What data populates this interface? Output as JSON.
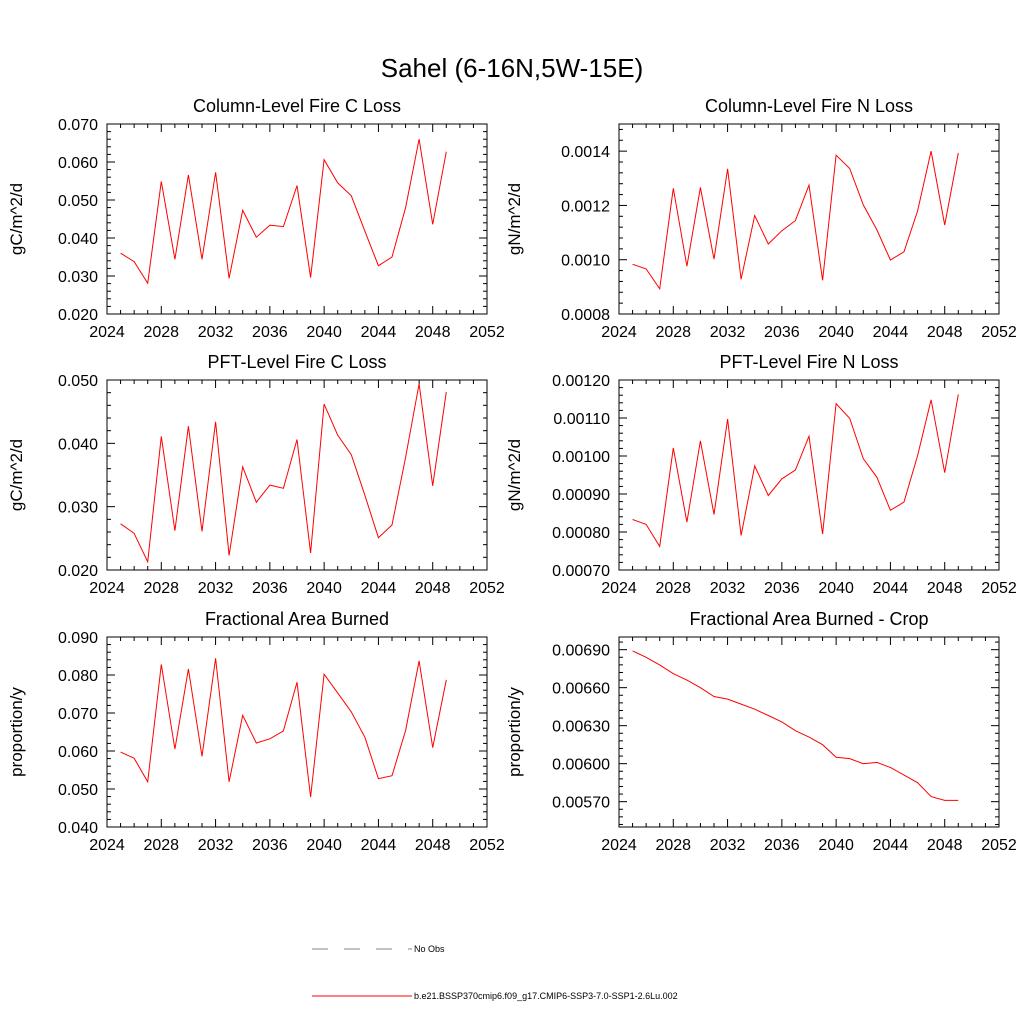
{
  "figure": {
    "title": "Sahel (6-16N,5W-15E)"
  },
  "colors": {
    "series": "#ff0000",
    "no_obs": "#8080a0",
    "axis": "#000000"
  },
  "chart_data": [
    {
      "type": "line",
      "title": "Column-Level Fire C Loss",
      "xlabel": "",
      "ylabel": "gC/m^2/d",
      "xlim": [
        2024,
        2052
      ],
      "ylim": [
        0.02,
        0.07
      ],
      "xticks": [
        "2024",
        "2028",
        "2032",
        "2036",
        "2040",
        "2044",
        "2048",
        "2052"
      ],
      "yticks": [
        "0.020",
        "0.030",
        "0.040",
        "0.050",
        "0.060",
        "0.070"
      ],
      "x": [
        2025,
        2026,
        2027,
        2028,
        2029,
        2030,
        2031,
        2032,
        2033,
        2034,
        2035,
        2036,
        2037,
        2038,
        2039,
        2040,
        2041,
        2042,
        2043,
        2044,
        2045,
        2046,
        2047,
        2048,
        2049
      ],
      "series": [
        {
          "values": [
            0.036,
            0.0338,
            0.0281,
            0.0549,
            0.0344,
            0.0566,
            0.0344,
            0.0573,
            0.0294,
            0.0473,
            0.0402,
            0.0434,
            0.043,
            0.0538,
            0.0296,
            0.0606,
            0.0545,
            0.0511,
            0.0418,
            0.0327,
            0.035,
            0.048,
            0.066,
            0.0436,
            0.0627
          ]
        }
      ],
      "grid": false,
      "legend": "none"
    },
    {
      "type": "line",
      "title": "Column-Level Fire N Loss",
      "xlabel": "",
      "ylabel": "gN/m^2/d",
      "xlim": [
        2024,
        2052
      ],
      "ylim": [
        0.0008,
        0.0015
      ],
      "xticks": [
        "2024",
        "2028",
        "2032",
        "2036",
        "2040",
        "2044",
        "2048",
        "2052"
      ],
      "yticks": [
        "0.0008",
        "0.0010",
        "0.0012",
        "0.0014"
      ],
      "x": [
        2025,
        2026,
        2027,
        2028,
        2029,
        2030,
        2031,
        2032,
        2033,
        2034,
        2035,
        2036,
        2037,
        2038,
        2039,
        2040,
        2041,
        2042,
        2043,
        2044,
        2045,
        2046,
        2047,
        2048,
        2049
      ],
      "series": [
        {
          "values": [
            0.000983,
            0.000966,
            0.000893,
            0.001263,
            0.000976,
            0.001266,
            0.001002,
            0.001335,
            0.000928,
            0.001163,
            0.001058,
            0.001107,
            0.001144,
            0.001275,
            0.000924,
            0.001385,
            0.001336,
            0.001202,
            0.00111,
            0.000999,
            0.001029,
            0.00118,
            0.0014,
            0.001128,
            0.001393
          ]
        }
      ],
      "grid": false,
      "legend": "none"
    },
    {
      "type": "line",
      "title": "PFT-Level Fire C Loss",
      "xlabel": "",
      "ylabel": "gC/m^2/d",
      "xlim": [
        2024,
        2052
      ],
      "ylim": [
        0.02,
        0.05
      ],
      "xticks": [
        "2024",
        "2028",
        "2032",
        "2036",
        "2040",
        "2044",
        "2048",
        "2052"
      ],
      "yticks": [
        "0.020",
        "0.030",
        "0.040",
        "0.050"
      ],
      "x": [
        2025,
        2026,
        2027,
        2028,
        2029,
        2030,
        2031,
        2032,
        2033,
        2034,
        2035,
        2036,
        2037,
        2038,
        2039,
        2040,
        2041,
        2042,
        2043,
        2044,
        2045,
        2046,
        2047,
        2048,
        2049
      ],
      "series": [
        {
          "values": [
            0.0273,
            0.0258,
            0.0213,
            0.0411,
            0.0262,
            0.0427,
            0.0261,
            0.0434,
            0.0223,
            0.0363,
            0.0307,
            0.0334,
            0.0329,
            0.0406,
            0.0227,
            0.0462,
            0.0413,
            0.0382,
            0.0318,
            0.0251,
            0.0271,
            0.0378,
            0.0494,
            0.0333,
            0.0481
          ]
        }
      ],
      "grid": false,
      "legend": "none"
    },
    {
      "type": "line",
      "title": "PFT-Level Fire N Loss",
      "xlabel": "",
      "ylabel": "gN/m^2/d",
      "xlim": [
        2024,
        2052
      ],
      "ylim": [
        0.0007,
        0.0012
      ],
      "xticks": [
        "2024",
        "2028",
        "2032",
        "2036",
        "2040",
        "2044",
        "2048",
        "2052"
      ],
      "yticks": [
        "0.00070",
        "0.00080",
        "0.00090",
        "0.00100",
        "0.00110",
        "0.00120"
      ],
      "x": [
        2025,
        2026,
        2027,
        2028,
        2029,
        2030,
        2031,
        2032,
        2033,
        2034,
        2035,
        2036,
        2037,
        2038,
        2039,
        2040,
        2041,
        2042,
        2043,
        2044,
        2045,
        2046,
        2047,
        2048,
        2049
      ],
      "series": [
        {
          "values": [
            0.000833,
            0.00082,
            0.000762,
            0.001021,
            0.000826,
            0.00104,
            0.000846,
            0.001097,
            0.000791,
            0.000974,
            0.000896,
            0.00094,
            0.000963,
            0.001052,
            0.000795,
            0.001138,
            0.001099,
            0.000993,
            0.000944,
            0.000857,
            0.000879,
            0.001001,
            0.001148,
            0.000956,
            0.001162
          ]
        }
      ],
      "grid": false,
      "legend": "none"
    },
    {
      "type": "line",
      "title": "Fractional Area Burned",
      "xlabel": "",
      "ylabel": "proportion/y",
      "xlim": [
        2024,
        2052
      ],
      "ylim": [
        0.04,
        0.09
      ],
      "xticks": [
        "2024",
        "2028",
        "2032",
        "2036",
        "2040",
        "2044",
        "2048",
        "2052"
      ],
      "yticks": [
        "0.040",
        "0.050",
        "0.060",
        "0.070",
        "0.080",
        "0.090"
      ],
      "x": [
        2025,
        2026,
        2027,
        2028,
        2029,
        2030,
        2031,
        2032,
        2033,
        2034,
        2035,
        2036,
        2037,
        2038,
        2039,
        2040,
        2041,
        2042,
        2043,
        2044,
        2045,
        2046,
        2047,
        2048,
        2049
      ],
      "series": [
        {
          "values": [
            0.0597,
            0.0581,
            0.0519,
            0.0828,
            0.0605,
            0.0816,
            0.0586,
            0.0844,
            0.0519,
            0.0694,
            0.0621,
            0.0632,
            0.0653,
            0.0781,
            0.0479,
            0.0802,
            0.0753,
            0.0703,
            0.0636,
            0.0527,
            0.0535,
            0.0654,
            0.0837,
            0.0609,
            0.0787
          ]
        }
      ],
      "grid": false,
      "legend": "none"
    },
    {
      "type": "line",
      "title": "Fractional Area Burned - Crop",
      "xlabel": "",
      "ylabel": "proportion/y",
      "xlim": [
        2024,
        2052
      ],
      "ylim": [
        0.0055,
        0.007
      ],
      "xticks": [
        "2024",
        "2028",
        "2032",
        "2036",
        "2040",
        "2044",
        "2048",
        "2052"
      ],
      "yticks": [
        "0.00570",
        "0.00600",
        "0.00630",
        "0.00660",
        "0.00690"
      ],
      "x": [
        2025,
        2026,
        2027,
        2028,
        2029,
        2030,
        2031,
        2032,
        2033,
        2034,
        2035,
        2036,
        2037,
        2038,
        2039,
        2040,
        2041,
        2042,
        2043,
        2044,
        2045,
        2046,
        2047,
        2048,
        2049
      ],
      "series": [
        {
          "values": [
            0.00689,
            0.00684,
            0.00678,
            0.00671,
            0.00666,
            0.0066,
            0.00653,
            0.00651,
            0.00647,
            0.00643,
            0.00638,
            0.00633,
            0.00626,
            0.00621,
            0.00615,
            0.00605,
            0.00604,
            0.006,
            0.00601,
            0.00597,
            0.00591,
            0.00585,
            0.00574,
            0.00571,
            0.00571
          ]
        }
      ],
      "grid": false,
      "legend": "none"
    }
  ],
  "legend": {
    "entries": [
      {
        "label": "No Obs",
        "style": "dashed"
      },
      {
        "label": "b.e21.BSSP370cmip6.f09_g17.CMIP6-SSP3-7.0-SSP1-2.6Lu.002",
        "style": "solid"
      }
    ]
  }
}
